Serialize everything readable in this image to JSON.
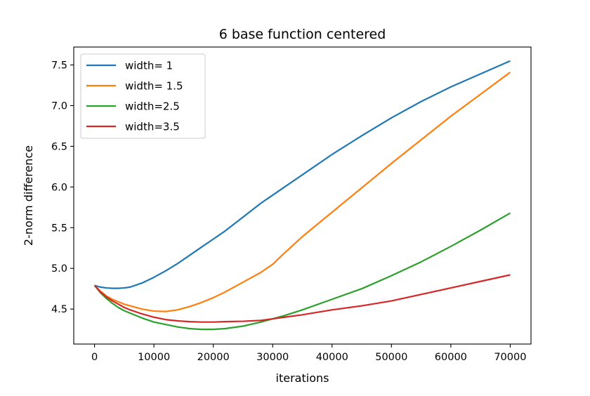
{
  "chart_data": {
    "type": "line",
    "title": "6 base function centered",
    "xlabel": "iterations",
    "ylabel": "2-norm difference",
    "xlim": [
      -3500,
      73500
    ],
    "ylim": [
      4.07,
      7.72
    ],
    "xticks": [
      0,
      10000,
      20000,
      30000,
      40000,
      50000,
      60000,
      70000
    ],
    "xtick_labels": [
      "0",
      "10000",
      "20000",
      "30000",
      "40000",
      "50000",
      "60000",
      "70000"
    ],
    "yticks": [
      4.5,
      5.0,
      5.5,
      6.0,
      6.5,
      7.0,
      7.5
    ],
    "ytick_labels": [
      "4.5",
      "5.0",
      "5.5",
      "6.0",
      "6.5",
      "7.0",
      "7.5"
    ],
    "grid": false,
    "legend_position": "upper left",
    "x": [
      0,
      1000,
      2000,
      3000,
      4000,
      5000,
      6000,
      8000,
      10000,
      12000,
      14000,
      16000,
      18000,
      20000,
      22000,
      25000,
      28000,
      30000,
      32000,
      35000,
      40000,
      45000,
      50000,
      55000,
      60000,
      65000,
      70000
    ],
    "series": [
      {
        "name": "width= 1",
        "color": "#1f77b4",
        "values": [
          4.79,
          4.77,
          4.76,
          4.755,
          4.755,
          4.76,
          4.77,
          4.82,
          4.89,
          4.97,
          5.06,
          5.16,
          5.26,
          5.36,
          5.46,
          5.63,
          5.8,
          5.9,
          6.0,
          6.15,
          6.4,
          6.63,
          6.85,
          7.05,
          7.23,
          7.39,
          7.55
        ]
      },
      {
        "name": "width= 1.5",
        "color": "#ff7f0e",
        "values": [
          4.79,
          4.72,
          4.66,
          4.62,
          4.59,
          4.56,
          4.54,
          4.5,
          4.475,
          4.47,
          4.49,
          4.53,
          4.58,
          4.64,
          4.71,
          4.83,
          4.95,
          5.05,
          5.19,
          5.39,
          5.69,
          5.99,
          6.29,
          6.58,
          6.87,
          7.14,
          7.41
        ]
      },
      {
        "name": "width=2.5",
        "color": "#2ca02c",
        "values": [
          4.79,
          4.7,
          4.63,
          4.57,
          4.52,
          4.48,
          4.45,
          4.39,
          4.34,
          4.31,
          4.28,
          4.26,
          4.25,
          4.25,
          4.26,
          4.29,
          4.34,
          4.38,
          4.42,
          4.49,
          4.62,
          4.75,
          4.91,
          5.08,
          5.27,
          5.47,
          5.68
        ]
      },
      {
        "name": "width=3.5",
        "color": "#d62728",
        "values": [
          4.79,
          4.71,
          4.65,
          4.6,
          4.56,
          4.52,
          4.49,
          4.44,
          4.4,
          4.37,
          4.355,
          4.345,
          4.34,
          4.34,
          4.345,
          4.35,
          4.36,
          4.38,
          4.4,
          4.43,
          4.49,
          4.54,
          4.6,
          4.68,
          4.76,
          4.84,
          4.92
        ]
      }
    ]
  }
}
